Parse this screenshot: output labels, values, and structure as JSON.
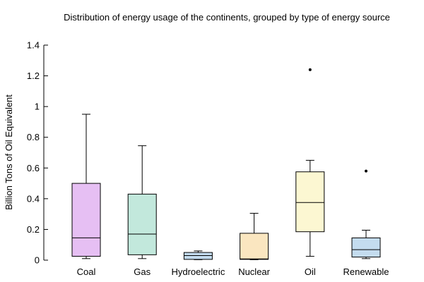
{
  "chart_data": {
    "type": "box",
    "title": "Distribution of energy usage of the continents, grouped by type of energy source",
    "xlabel": "",
    "ylabel": "Billion Tons of Oil Equivalent",
    "ylim": [
      0,
      1.4
    ],
    "yticks": [
      {
        "value": 0,
        "label": "0"
      },
      {
        "value": 0.2,
        "label": "0.2"
      },
      {
        "value": 0.4,
        "label": "0.4"
      },
      {
        "value": 0.6,
        "label": "0.6"
      },
      {
        "value": 0.8,
        "label": "0.8"
      },
      {
        "value": 1.0,
        "label": "1"
      },
      {
        "value": 1.2,
        "label": "1.2"
      },
      {
        "value": 1.4,
        "label": "1.4"
      }
    ],
    "grid": false,
    "legend": "none",
    "categories": [
      "Coal",
      "Gas",
      "Hydroelectric",
      "Nuclear",
      "Oil",
      "Renewable"
    ],
    "boxes": [
      {
        "category": "Coal",
        "min": 0.01,
        "q1": 0.025,
        "median": 0.145,
        "q3": 0.5,
        "max": 0.95,
        "outliers": [],
        "color": "#e6bff3"
      },
      {
        "category": "Gas",
        "min": 0.01,
        "q1": 0.035,
        "median": 0.17,
        "q3": 0.43,
        "max": 0.745,
        "outliers": [],
        "color": "#c2e8dc"
      },
      {
        "category": "Hydroelectric",
        "min": 0.003,
        "q1": 0.005,
        "median": 0.03,
        "q3": 0.05,
        "max": 0.06,
        "outliers": [],
        "color": "#c4dcef"
      },
      {
        "category": "Nuclear",
        "min": 0.003,
        "q1": 0.005,
        "median": 0.008,
        "q3": 0.175,
        "max": 0.305,
        "outliers": [],
        "color": "#fae6c0"
      },
      {
        "category": "Oil",
        "min": 0.025,
        "q1": 0.185,
        "median": 0.375,
        "q3": 0.575,
        "max": 0.65,
        "outliers": [
          1.24
        ],
        "color": "#fcf7d2"
      },
      {
        "category": "Renewable",
        "min": 0.01,
        "q1": 0.02,
        "median": 0.068,
        "q3": 0.145,
        "max": 0.195,
        "outliers": [
          0.58
        ],
        "color": "#c4dcef"
      }
    ]
  }
}
